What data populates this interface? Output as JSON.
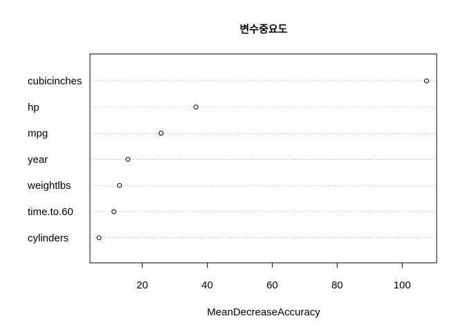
{
  "chart_data": {
    "type": "scatter",
    "title": "변수중요도",
    "xlabel": "MeanDecreaseAccuracy",
    "ylabel": "",
    "xlim": [
      3.9,
      110.6
    ],
    "xticks": [
      20,
      40,
      60,
      80,
      100
    ],
    "grid": "horizontal dotted",
    "categories": [
      "cubicinches",
      "hp",
      "mpg",
      "year",
      "weightlbs",
      "time.to.60",
      "cylinders"
    ],
    "values": [
      107.5,
      36.5,
      25.8,
      15.6,
      13.0,
      11.3,
      6.7
    ]
  }
}
